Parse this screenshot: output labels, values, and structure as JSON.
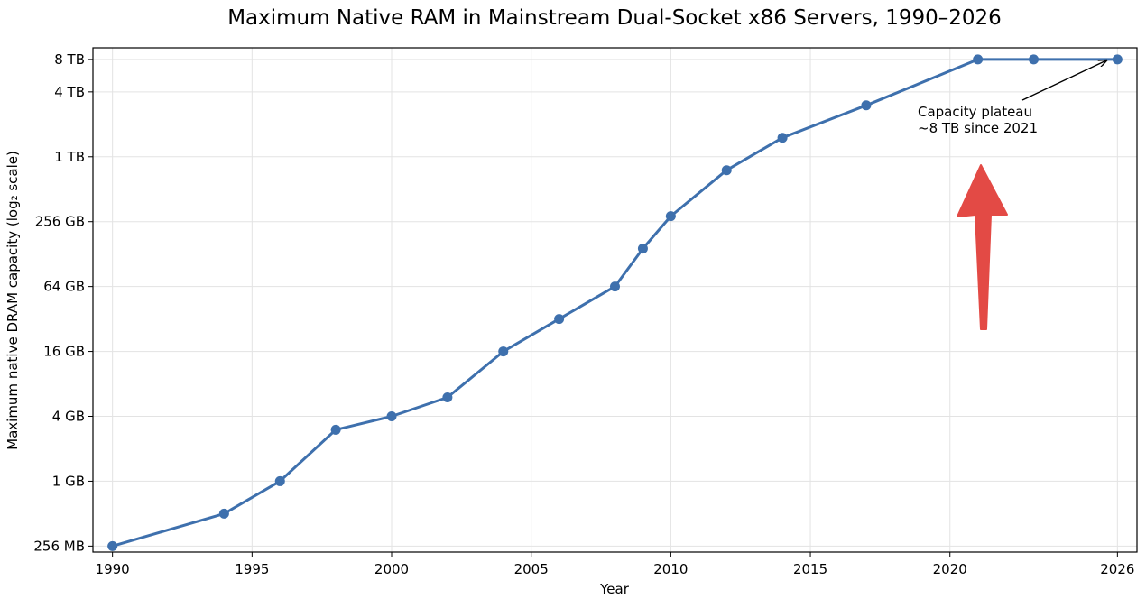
{
  "chart_data": {
    "type": "line",
    "title": "Maximum Native RAM in Mainstream Dual-Socket x86 Servers, 1990–2026",
    "xlabel": "Year",
    "ylabel": "Maximum native DRAM capacity (log₂ scale)",
    "y_scale": "log2",
    "y_unit": "GB",
    "xlim": [
      1989.3,
      2026.7
    ],
    "ylim_gb": [
      0.22,
      10500
    ],
    "x_ticks": [
      1990,
      1995,
      2000,
      2005,
      2010,
      2015,
      2020,
      2026
    ],
    "y_ticks": [
      {
        "label": "256 MB",
        "value_gb": 0.25
      },
      {
        "label": "1 GB",
        "value_gb": 1
      },
      {
        "label": "4 GB",
        "value_gb": 4
      },
      {
        "label": "16 GB",
        "value_gb": 16
      },
      {
        "label": "64 GB",
        "value_gb": 64
      },
      {
        "label": "256 GB",
        "value_gb": 256
      },
      {
        "label": "1 TB",
        "value_gb": 1024
      },
      {
        "label": "4 TB",
        "value_gb": 4096
      },
      {
        "label": "8 TB",
        "value_gb": 8192
      }
    ],
    "grid": true,
    "series": [
      {
        "color": "#3e70ad",
        "points": [
          {
            "x": 1990,
            "y": 0.25
          },
          {
            "x": 1994,
            "y": 0.5
          },
          {
            "x": 1996,
            "y": 1
          },
          {
            "x": 1998,
            "y": 3
          },
          {
            "x": 2000,
            "y": 4
          },
          {
            "x": 2002,
            "y": 6
          },
          {
            "x": 2004,
            "y": 16
          },
          {
            "x": 2006,
            "y": 32
          },
          {
            "x": 2008,
            "y": 64
          },
          {
            "x": 2009,
            "y": 144
          },
          {
            "x": 2010,
            "y": 288
          },
          {
            "x": 2012,
            "y": 768
          },
          {
            "x": 2014,
            "y": 1536
          },
          {
            "x": 2017,
            "y": 3072
          },
          {
            "x": 2021,
            "y": 8192
          },
          {
            "x": 2023,
            "y": 8192
          },
          {
            "x": 2026,
            "y": 8192
          }
        ]
      }
    ],
    "annotation": {
      "lines": [
        "Capacity plateau",
        "~8 TB since 2021"
      ],
      "target_x": 2026,
      "target_y": 8192
    },
    "highlight_arrow_color": "#e34a45"
  }
}
